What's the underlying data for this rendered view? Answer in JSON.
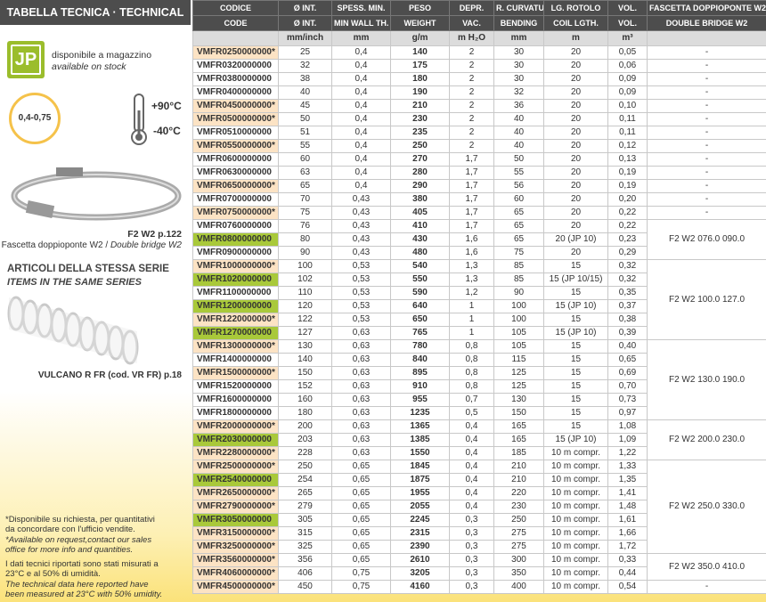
{
  "header": {
    "title": "TABELLA TECNICA · TECHNICAL DATA"
  },
  "sidebar": {
    "logo": "JP",
    "stock_it": "disponibile a magazzino",
    "stock_en": "available on stock",
    "thickness": "0,4-0,75",
    "temp_max": "+90°C",
    "temp_min": "-40°C",
    "clamp_ref": "F2 W2 p.122",
    "clamp_it": "Fascetta doppioponte W2 / ",
    "clamp_en": "Double bridge W2",
    "series_it": "ARTICOLI DELLA STESSA SERIE",
    "series_en": "ITEMS IN THE SAME SERIES",
    "series_item": "VULCANO R FR (cod. VR FR) p.18",
    "note_it": "*Disponibile su richiesta, per quantitativi da concordare con l'ufficio vendite.",
    "note_en": "*Available on request,contact our sales office for more info and quantities.",
    "measure_it": "I dati tecnici riportati sono stati misurati a 23°C e al 50% di umidità.",
    "measure_en": "The technical data here reported have been measured at 23°C with 50% umidity."
  },
  "table": {
    "columns": [
      {
        "it": "CODICE",
        "en": "CODE",
        "unit": null
      },
      {
        "it": "Ø INT.",
        "en": "Ø INT.",
        "unit": "mm/inch"
      },
      {
        "it": "SPESS. MIN.",
        "en": "MIN WALL TH.",
        "unit": "mm"
      },
      {
        "it": "PESO",
        "en": "WEIGHT",
        "unit": "g/m"
      },
      {
        "it": "DEPR.",
        "en": "VAC.",
        "unit": "m H₂O"
      },
      {
        "it": "R. CURVATURA",
        "en": "BENDING",
        "unit": "mm"
      },
      {
        "it": "LG. ROTOLO",
        "en": "COIL LGTH.",
        "unit": "m"
      },
      {
        "it": "VOL.",
        "en": "VOL.",
        "unit": "m³"
      },
      {
        "it": "FASCETTA DOPPIOPONTE W2",
        "en": "DOUBLE BRIDGE W2",
        "unit": null
      }
    ],
    "highlight_colors": {
      "on_request": "#fce3c4",
      "stock": "#a9c93a"
    },
    "rows": [
      [
        "VMFR0250000000*",
        25,
        "0,4",
        140,
        2,
        30,
        20,
        "0,05",
        "-",
        "on_request"
      ],
      [
        "VMFR0320000000",
        32,
        "0,4",
        175,
        2,
        30,
        20,
        "0,06",
        "-",
        null
      ],
      [
        "VMFR0380000000",
        38,
        "0,4",
        180,
        2,
        30,
        20,
        "0,09",
        "-",
        null
      ],
      [
        "VMFR0400000000",
        40,
        "0,4",
        190,
        2,
        32,
        20,
        "0,09",
        "-",
        null
      ],
      [
        "VMFR0450000000*",
        45,
        "0,4",
        210,
        2,
        36,
        20,
        "0,10",
        "-",
        "on_request"
      ],
      [
        "VMFR0500000000*",
        50,
        "0,4",
        230,
        2,
        40,
        20,
        "0,11",
        "-",
        "on_request"
      ],
      [
        "VMFR0510000000",
        51,
        "0,4",
        235,
        2,
        40,
        20,
        "0,11",
        "-",
        null
      ],
      [
        "VMFR0550000000*",
        55,
        "0,4",
        250,
        2,
        40,
        20,
        "0,12",
        "-",
        "on_request"
      ],
      [
        "VMFR0600000000",
        60,
        "0,4",
        270,
        "1,7",
        50,
        20,
        "0,13",
        "-",
        null
      ],
      [
        "VMFR0630000000",
        63,
        "0,4",
        280,
        "1,7",
        55,
        20,
        "0,19",
        "-",
        null
      ],
      [
        "VMFR0650000000*",
        65,
        "0,4",
        290,
        "1,7",
        56,
        20,
        "0,19",
        "-",
        "on_request"
      ],
      [
        "VMFR0700000000",
        70,
        "0,43",
        380,
        "1,7",
        60,
        20,
        "0,20",
        "-",
        null
      ],
      [
        "VMFR0750000000*",
        75,
        "0,43",
        405,
        "1,7",
        65,
        20,
        "0,22",
        "-",
        "on_request"
      ],
      [
        "VMFR0760000000",
        76,
        "0,43",
        410,
        "1,7",
        65,
        20,
        "0,22",
        "F2 W2 076.0 090.0",
        null
      ],
      [
        "VMFR0800000000",
        80,
        "0,43",
        430,
        "1,6",
        65,
        "20 (JP 10)",
        "0,23",
        null,
        "stock"
      ],
      [
        "VMFR0900000000",
        90,
        "0,43",
        480,
        "1,6",
        75,
        20,
        "0,29",
        null,
        null
      ],
      [
        "VMFR1000000000*",
        100,
        "0,53",
        540,
        "1,3",
        85,
        15,
        "0,32",
        "F2 W2 100.0 127.0",
        "on_request"
      ],
      [
        "VMFR1020000000",
        102,
        "0,53",
        550,
        "1,3",
        85,
        "15 (JP 10/15)",
        "0,32",
        null,
        "stock"
      ],
      [
        "VMFR1100000000",
        110,
        "0,53",
        590,
        "1,2",
        90,
        15,
        "0,35",
        null,
        null
      ],
      [
        "VMFR1200000000",
        120,
        "0,53",
        640,
        1,
        100,
        "15 (JP 10)",
        "0,37",
        null,
        "stock"
      ],
      [
        "VMFR1220000000*",
        122,
        "0,53",
        650,
        1,
        100,
        15,
        "0,38",
        null,
        "on_request"
      ],
      [
        "VMFR1270000000",
        127,
        "0,63",
        765,
        1,
        105,
        "15 (JP 10)",
        "0,39",
        null,
        "stock"
      ],
      [
        "VMFR1300000000*",
        130,
        "0,63",
        780,
        "0,8",
        105,
        15,
        "0,40",
        "F2 W2 130.0 190.0",
        "on_request"
      ],
      [
        "VMFR1400000000",
        140,
        "0,63",
        840,
        "0,8",
        115,
        15,
        "0,65",
        null,
        null
      ],
      [
        "VMFR1500000000*",
        150,
        "0,63",
        895,
        "0,8",
        125,
        15,
        "0,69",
        null,
        "on_request"
      ],
      [
        "VMFR1520000000",
        152,
        "0,63",
        910,
        "0,8",
        125,
        15,
        "0,70",
        null,
        null
      ],
      [
        "VMFR1600000000",
        160,
        "0,63",
        955,
        "0,7",
        130,
        15,
        "0,73",
        null,
        null
      ],
      [
        "VMFR1800000000",
        180,
        "0,63",
        1235,
        "0,5",
        150,
        15,
        "0,97",
        null,
        null
      ],
      [
        "VMFR2000000000*",
        200,
        "0,63",
        1365,
        "0,4",
        165,
        15,
        "1,08",
        "F2 W2 200.0 230.0",
        "on_request"
      ],
      [
        "VMFR2030000000",
        203,
        "0,63",
        1385,
        "0,4",
        165,
        "15 (JP 10)",
        "1,09",
        null,
        "stock"
      ],
      [
        "VMFR2280000000*",
        228,
        "0,63",
        1550,
        "0,4",
        185,
        "10 m compr.",
        "1,22",
        null,
        "on_request"
      ],
      [
        "VMFR2500000000*",
        250,
        "0,65",
        1845,
        "0,4",
        210,
        "10 m compr.",
        "1,33",
        "F2 W2 250.0 330.0",
        "on_request"
      ],
      [
        "VMFR2540000000",
        254,
        "0,65",
        1875,
        "0,4",
        210,
        "10 m compr.",
        "1,35",
        null,
        "stock"
      ],
      [
        "VMFR2650000000*",
        265,
        "0,65",
        1955,
        "0,4",
        220,
        "10 m compr.",
        "1,41",
        null,
        "on_request"
      ],
      [
        "VMFR2790000000*",
        279,
        "0,65",
        2055,
        "0,4",
        230,
        "10 m compr.",
        "1,48",
        null,
        "on_request"
      ],
      [
        "VMFR3050000000",
        305,
        "0,65",
        2245,
        "0,3",
        250,
        "10 m compr.",
        "1,61",
        null,
        "stock"
      ],
      [
        "VMFR3150000000*",
        315,
        "0,65",
        2315,
        "0,3",
        275,
        "10 m compr.",
        "1,66",
        null,
        "on_request"
      ],
      [
        "VMFR3250000000*",
        325,
        "0,65",
        2390,
        "0,3",
        275,
        "10 m compr.",
        "1,72",
        null,
        "on_request"
      ],
      [
        "VMFR3560000000*",
        356,
        "0,65",
        2610,
        "0,3",
        300,
        "10 m compr.",
        "0,33",
        "F2 W2 350.0 410.0",
        "on_request"
      ],
      [
        "VMFR4060000000*",
        406,
        "0,75",
        3205,
        "0,3",
        350,
        "10 m compr.",
        "0,44",
        null,
        "on_request"
      ],
      [
        "VMFR4500000000*",
        450,
        "0,75",
        4160,
        "0,3",
        400,
        "10 m compr.",
        "0,54",
        "-",
        "on_request"
      ]
    ]
  }
}
